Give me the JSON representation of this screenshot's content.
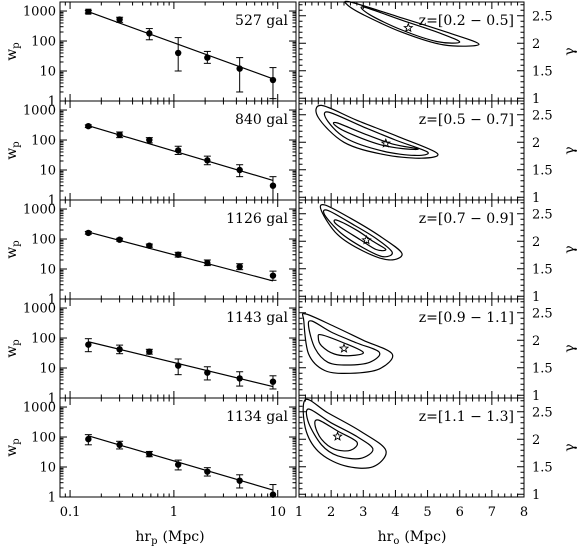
{
  "chart_data": {
    "type": "scatter",
    "layout": "5 rows x 2 columns, shared x-axes",
    "left_column": {
      "x_title": "hr",
      "x_title_sub": "p",
      "x_title_unit": "(Mpc)",
      "y_title": "w",
      "y_title_sub": "p",
      "x_scale": "log",
      "y_scale": "log",
      "xlim": [
        0.08,
        15
      ],
      "ylim": [
        1,
        2000
      ],
      "x_ticks": [
        0.1,
        1,
        10
      ],
      "x_tick_labels": [
        "0.1",
        "1",
        "10"
      ],
      "y_ticks": [
        1,
        10,
        100,
        1000
      ],
      "y_tick_labels": [
        "1",
        "10",
        "100",
        "1000"
      ]
    },
    "right_column": {
      "x_title": "hr",
      "x_title_sub": "o",
      "x_title_unit": "(Mpc)",
      "y_title": "γ",
      "xlim": [
        1,
        8
      ],
      "ylim": [
        0.95,
        2.75
      ],
      "x_ticks": [
        1,
        2,
        3,
        4,
        5,
        6,
        7,
        8
      ],
      "x_tick_labels": [
        "1",
        "2",
        "3",
        "4",
        "5",
        "6",
        "7",
        "8"
      ],
      "y_ticks": [
        1,
        1.5,
        2,
        2.5
      ],
      "y_tick_labels": [
        "1",
        "1.5",
        "2",
        "2.5"
      ]
    },
    "panels": [
      {
        "count_label": "527 gal",
        "z_label": "z=[0.2 − 0.5]",
        "points": [
          {
            "x": 0.15,
            "y": 950,
            "lo": 850,
            "hi": 1050
          },
          {
            "x": 0.3,
            "y": 520,
            "lo": 420,
            "hi": 620
          },
          {
            "x": 0.58,
            "y": 180,
            "lo": 110,
            "hi": 260
          },
          {
            "x": 1.1,
            "y": 40,
            "lo": 10,
            "hi": 130
          },
          {
            "x": 2.1,
            "y": 28,
            "lo": 18,
            "hi": 45
          },
          {
            "x": 4.3,
            "y": 12,
            "lo": 2,
            "hi": 28
          },
          {
            "x": 9,
            "y": 5,
            "lo": 1.2,
            "hi": 13
          }
        ],
        "fit_line": [
          [
            0.15,
            950
          ],
          [
            9,
            5.5
          ]
        ],
        "best_fit": {
          "r0": 4.4,
          "gamma": 2.28
        },
        "contours": [
          [
            [
              3.0,
              2.66
            ],
            [
              4.2,
              2.42
            ],
            [
              5.4,
              2.18
            ],
            [
              6.0,
              2.02
            ],
            [
              5.3,
              2.03
            ],
            [
              4.2,
              2.24
            ],
            [
              3.2,
              2.52
            ]
          ],
          [
            [
              2.6,
              2.75
            ],
            [
              4.1,
              2.48
            ],
            [
              5.6,
              2.2
            ],
            [
              6.6,
              1.98
            ],
            [
              5.5,
              1.97
            ],
            [
              4.2,
              2.2
            ],
            [
              3.0,
              2.52
            ],
            [
              2.5,
              2.7
            ]
          ]
        ]
      },
      {
        "count_label": "840 gal",
        "z_label": "z=[0.5 − 0.7]",
        "points": [
          {
            "x": 0.15,
            "y": 290,
            "lo": 260,
            "hi": 320
          },
          {
            "x": 0.3,
            "y": 150,
            "lo": 120,
            "hi": 185
          },
          {
            "x": 0.58,
            "y": 100,
            "lo": 80,
            "hi": 120
          },
          {
            "x": 1.1,
            "y": 45,
            "lo": 33,
            "hi": 62
          },
          {
            "x": 2.1,
            "y": 21,
            "lo": 15,
            "hi": 29
          },
          {
            "x": 4.3,
            "y": 10,
            "lo": 6,
            "hi": 15
          },
          {
            "x": 9,
            "y": 3,
            "lo": 1,
            "hi": 6
          }
        ],
        "fit_line": [
          [
            0.15,
            300
          ],
          [
            9,
            4.5
          ]
        ],
        "best_fit": {
          "r0": 3.7,
          "gamma": 1.98
        },
        "contours": [
          [
            [
              2.2,
              2.35
            ],
            [
              3.0,
              2.16
            ],
            [
              3.9,
              1.97
            ],
            [
              4.7,
              1.88
            ],
            [
              4.3,
              1.88
            ],
            [
              3.5,
              1.96
            ],
            [
              2.5,
              2.18
            ],
            [
              2.1,
              2.32
            ]
          ],
          [
            [
              1.9,
              2.55
            ],
            [
              3.0,
              2.28
            ],
            [
              4.0,
              2.04
            ],
            [
              5.0,
              1.82
            ],
            [
              4.6,
              1.76
            ],
            [
              3.6,
              1.84
            ],
            [
              2.5,
              2.06
            ],
            [
              1.9,
              2.38
            ]
          ],
          [
            [
              1.7,
              2.67
            ],
            [
              2.8,
              2.4
            ],
            [
              4.1,
              2.1
            ],
            [
              5.3,
              1.8
            ],
            [
              4.8,
              1.71
            ],
            [
              3.6,
              1.78
            ],
            [
              2.4,
              2.0
            ],
            [
              1.6,
              2.45
            ]
          ]
        ]
      },
      {
        "count_label": "1126 gal",
        "z_label": "z=[0.7 − 0.9]",
        "points": [
          {
            "x": 0.15,
            "y": 160,
            "lo": 145,
            "hi": 178
          },
          {
            "x": 0.3,
            "y": 95,
            "lo": 85,
            "hi": 106
          },
          {
            "x": 0.58,
            "y": 60,
            "lo": 53,
            "hi": 68
          },
          {
            "x": 1.1,
            "y": 30,
            "lo": 25,
            "hi": 36
          },
          {
            "x": 2.1,
            "y": 16,
            "lo": 13,
            "hi": 20
          },
          {
            "x": 4.3,
            "y": 12,
            "lo": 9.5,
            "hi": 15
          },
          {
            "x": 9,
            "y": 6,
            "lo": 4.2,
            "hi": 8.5
          }
        ],
        "fit_line": [
          [
            0.15,
            170
          ],
          [
            9,
            4
          ]
        ],
        "best_fit": {
          "r0": 3.1,
          "gamma": 2.02
        },
        "contours": [
          [
            [
              2.2,
              2.38
            ],
            [
              2.8,
              2.2
            ],
            [
              3.3,
              2.0
            ],
            [
              3.7,
              1.85
            ],
            [
              3.4,
              1.85
            ],
            [
              2.9,
              2.03
            ],
            [
              2.3,
              2.25
            ],
            [
              2.1,
              2.35
            ]
          ],
          [
            [
              1.9,
              2.56
            ],
            [
              2.7,
              2.3
            ],
            [
              3.4,
              2.05
            ],
            [
              3.9,
              1.8
            ],
            [
              3.6,
              1.72
            ],
            [
              3.0,
              1.88
            ],
            [
              2.3,
              2.15
            ],
            [
              1.8,
              2.48
            ]
          ],
          [
            [
              1.8,
              2.66
            ],
            [
              2.6,
              2.42
            ],
            [
              3.5,
              2.1
            ],
            [
              4.2,
              1.78
            ],
            [
              3.8,
              1.66
            ],
            [
              3.0,
              1.82
            ],
            [
              2.2,
              2.12
            ],
            [
              1.7,
              2.55
            ]
          ]
        ]
      },
      {
        "count_label": "1143 gal",
        "z_label": "z=[0.9 − 1.1]",
        "points": [
          {
            "x": 0.15,
            "y": 60,
            "lo": 35,
            "hi": 95
          },
          {
            "x": 0.3,
            "y": 42,
            "lo": 30,
            "hi": 58
          },
          {
            "x": 0.58,
            "y": 35,
            "lo": 29,
            "hi": 42
          },
          {
            "x": 1.1,
            "y": 12,
            "lo": 6,
            "hi": 20
          },
          {
            "x": 2.1,
            "y": 7,
            "lo": 4,
            "hi": 11
          },
          {
            "x": 4.3,
            "y": 4.5,
            "lo": 2.5,
            "hi": 7.5
          },
          {
            "x": 9,
            "y": 3.5,
            "lo": 2,
            "hi": 5.5
          }
        ],
        "fit_line": [
          [
            0.15,
            75
          ],
          [
            9,
            2.4
          ]
        ],
        "best_fit": {
          "r0": 2.4,
          "gamma": 1.85
        },
        "contours": [
          [
            [
              1.7,
              2.1
            ],
            [
              2.4,
              1.95
            ],
            [
              3.0,
              1.78
            ],
            [
              2.6,
              1.72
            ],
            [
              2.1,
              1.75
            ],
            [
              1.7,
              1.9
            ],
            [
              1.6,
              2.05
            ]
          ],
          [
            [
              1.4,
              2.35
            ],
            [
              2.0,
              2.15
            ],
            [
              2.8,
              1.95
            ],
            [
              3.5,
              1.78
            ],
            [
              3.2,
              1.6
            ],
            [
              2.5,
              1.55
            ],
            [
              1.9,
              1.6
            ],
            [
              1.5,
              1.85
            ],
            [
              1.3,
              2.25
            ]
          ],
          [
            [
              1.2,
              2.48
            ],
            [
              2.1,
              2.25
            ],
            [
              3.0,
              2.0
            ],
            [
              3.9,
              1.75
            ],
            [
              3.5,
              1.48
            ],
            [
              2.6,
              1.4
            ],
            [
              1.8,
              1.45
            ],
            [
              1.3,
              1.75
            ],
            [
              1.15,
              2.35
            ]
          ]
        ]
      },
      {
        "count_label": "1134 gal",
        "z_label": "z=[1.1 − 1.3]",
        "points": [
          {
            "x": 0.15,
            "y": 85,
            "lo": 55,
            "hi": 120
          },
          {
            "x": 0.3,
            "y": 55,
            "lo": 40,
            "hi": 72
          },
          {
            "x": 0.58,
            "y": 27,
            "lo": 22,
            "hi": 33
          },
          {
            "x": 1.1,
            "y": 12,
            "lo": 8,
            "hi": 17
          },
          {
            "x": 2.1,
            "y": 7,
            "lo": 5,
            "hi": 9.5
          },
          {
            "x": 4.3,
            "y": 3.5,
            "lo": 2,
            "hi": 5.5
          },
          {
            "x": 9,
            "y": 1.2,
            "lo": 1,
            "hi": 2.6
          }
        ],
        "fit_line": [
          [
            0.15,
            110
          ],
          [
            9,
            1.7
          ]
        ],
        "best_fit": {
          "r0": 2.2,
          "gamma": 2.05
        },
        "contours": [
          [
            [
              1.6,
              2.35
            ],
            [
              2.2,
              2.15
            ],
            [
              2.8,
              1.95
            ],
            [
              2.6,
              1.8
            ],
            [
              2.1,
              1.82
            ],
            [
              1.7,
              2.0
            ],
            [
              1.5,
              2.25
            ]
          ],
          [
            [
              1.3,
              2.55
            ],
            [
              2.0,
              2.3
            ],
            [
              2.8,
              2.05
            ],
            [
              3.3,
              1.82
            ],
            [
              2.9,
              1.65
            ],
            [
              2.2,
              1.7
            ],
            [
              1.7,
              1.9
            ],
            [
              1.3,
              2.3
            ]
          ],
          [
            [
              1.2,
              2.72
            ],
            [
              1.9,
              2.48
            ],
            [
              2.9,
              2.15
            ],
            [
              3.7,
              1.8
            ],
            [
              3.3,
              1.5
            ],
            [
              2.4,
              1.52
            ],
            [
              1.6,
              1.78
            ],
            [
              1.2,
              2.2
            ]
          ]
        ]
      }
    ]
  }
}
